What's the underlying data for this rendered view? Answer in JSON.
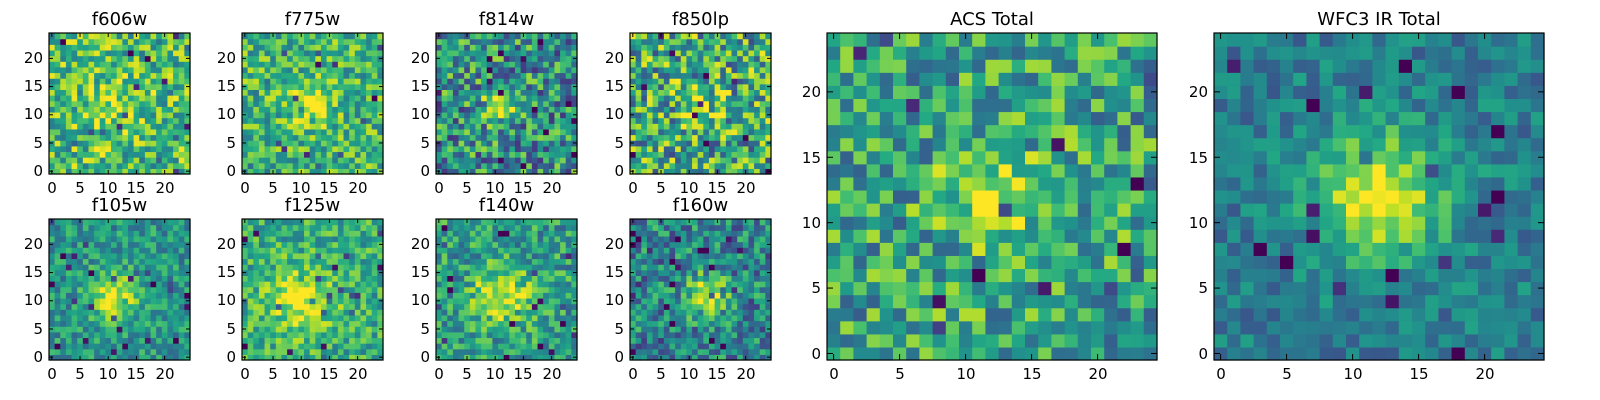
{
  "figure": {
    "colormap": "viridis",
    "colors": {
      "background": "#ffffff",
      "axes": "#000000",
      "low": "#440154",
      "mid": "#21918c",
      "high": "#fde725"
    }
  },
  "chart_data": [
    {
      "type": "heatmap",
      "title": "f606w",
      "grid_size": 25,
      "xticks": [
        "0",
        "5",
        "10",
        "15",
        "20"
      ],
      "yticks": [
        "0",
        "5",
        "10",
        "15",
        "20"
      ],
      "xlim": [
        0,
        25
      ],
      "ylim": [
        0,
        25
      ],
      "source_center": [
        11,
        11
      ],
      "source_sigma": 4.0,
      "source_peak": 0.2,
      "background_level": 0.68,
      "noise_amplitude": 0.3,
      "seed": 11
    },
    {
      "type": "heatmap",
      "title": "f775w",
      "grid_size": 25,
      "xticks": [
        "0",
        "5",
        "10",
        "15",
        "20"
      ],
      "yticks": [
        "0",
        "5",
        "10",
        "15",
        "20"
      ],
      "xlim": [
        0,
        25
      ],
      "ylim": [
        0,
        25
      ],
      "source_center": [
        12,
        12
      ],
      "source_sigma": 2.5,
      "source_peak": 0.35,
      "background_level": 0.66,
      "noise_amplitude": 0.26,
      "seed": 23
    },
    {
      "type": "heatmap",
      "title": "f814w",
      "grid_size": 25,
      "xticks": [
        "0",
        "5",
        "10",
        "15",
        "20"
      ],
      "yticks": [
        "0",
        "5",
        "10",
        "15",
        "20"
      ],
      "xlim": [
        0,
        25
      ],
      "ylim": [
        0,
        25
      ],
      "source_center": [
        11,
        12
      ],
      "source_sigma": 2.0,
      "source_peak": 0.45,
      "background_level": 0.5,
      "noise_amplitude": 0.35,
      "seed": 37
    },
    {
      "type": "heatmap",
      "title": "f850lp",
      "grid_size": 25,
      "xticks": [
        "0",
        "5",
        "10",
        "15",
        "20"
      ],
      "yticks": [
        "0",
        "5",
        "10",
        "15",
        "20"
      ],
      "xlim": [
        0,
        25
      ],
      "ylim": [
        0,
        25
      ],
      "source_center": [
        12,
        12
      ],
      "source_sigma": 3.0,
      "source_peak": 0.15,
      "background_level": 0.6,
      "noise_amplitude": 0.38,
      "seed": 41
    },
    {
      "type": "heatmap",
      "title": "f105w",
      "grid_size": 25,
      "xticks": [
        "0",
        "5",
        "10",
        "15",
        "20"
      ],
      "yticks": [
        "0",
        "5",
        "10",
        "15",
        "20"
      ],
      "xlim": [
        0,
        25
      ],
      "ylim": [
        0,
        25
      ],
      "source_center": [
        11,
        11
      ],
      "source_sigma": 3.0,
      "source_peak": 0.45,
      "background_level": 0.52,
      "noise_amplitude": 0.2,
      "seed": 53
    },
    {
      "type": "heatmap",
      "title": "f125w",
      "grid_size": 25,
      "xticks": [
        "0",
        "5",
        "10",
        "15",
        "20"
      ],
      "yticks": [
        "0",
        "5",
        "10",
        "15",
        "20"
      ],
      "xlim": [
        0,
        25
      ],
      "ylim": [
        0,
        25
      ],
      "source_center": [
        10,
        10
      ],
      "source_sigma": 4.0,
      "source_peak": 0.35,
      "background_level": 0.62,
      "noise_amplitude": 0.22,
      "seed": 67
    },
    {
      "type": "heatmap",
      "title": "f140w",
      "grid_size": 25,
      "xticks": [
        "0",
        "5",
        "10",
        "15",
        "20"
      ],
      "yticks": [
        "0",
        "5",
        "10",
        "15",
        "20"
      ],
      "xlim": [
        0,
        25
      ],
      "ylim": [
        0,
        25
      ],
      "source_center": [
        11,
        11
      ],
      "source_sigma": 3.5,
      "source_peak": 0.45,
      "background_level": 0.55,
      "noise_amplitude": 0.25,
      "seed": 71
    },
    {
      "type": "heatmap",
      "title": "f160w",
      "grid_size": 25,
      "xticks": [
        "0",
        "5",
        "10",
        "15",
        "20"
      ],
      "yticks": [
        "0",
        "5",
        "10",
        "15",
        "20"
      ],
      "xlim": [
        0,
        25
      ],
      "ylim": [
        0,
        25
      ],
      "source_center": [
        13,
        11
      ],
      "source_sigma": 2.5,
      "source_peak": 0.5,
      "background_level": 0.45,
      "noise_amplitude": 0.28,
      "seed": 83
    },
    {
      "type": "heatmap",
      "title": "ACS Total",
      "grid_size": 25,
      "xticks": [
        "0",
        "5",
        "10",
        "15",
        "20"
      ],
      "yticks": [
        "0",
        "5",
        "10",
        "15",
        "20"
      ],
      "xlim": [
        0,
        25
      ],
      "ylim": [
        0,
        25
      ],
      "source_center": [
        12,
        12
      ],
      "source_sigma": 2.5,
      "source_peak": 0.4,
      "background_level": 0.58,
      "noise_amplitude": 0.3,
      "seed": 97
    },
    {
      "type": "heatmap",
      "title": "WFC3 IR Total",
      "grid_size": 25,
      "xticks": [
        "0",
        "5",
        "10",
        "15",
        "20"
      ],
      "yticks": [
        "0",
        "5",
        "10",
        "15",
        "20"
      ],
      "xlim": [
        0,
        25
      ],
      "ylim": [
        0,
        25
      ],
      "source_center": [
        12,
        12
      ],
      "source_sigma": 3.5,
      "source_peak": 0.55,
      "background_level": 0.42,
      "noise_amplitude": 0.16,
      "seed": 101
    }
  ]
}
